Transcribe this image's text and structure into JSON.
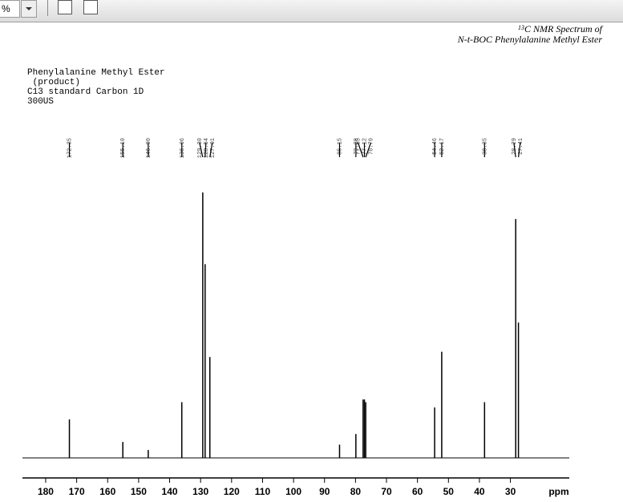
{
  "toolbar": {
    "zoom_suffix": "%"
  },
  "chart_data": {
    "type": "spectrum",
    "title": "C NMR Spectrum of",
    "title_superscript": "13",
    "subtitle": "N-t-BOC Phenylalanine Methyl Ester",
    "notes": [
      "Phenylalanine Methyl Ester",
      " (product)",
      "C13 standard Carbon 1D",
      "300US"
    ],
    "x_label": "ppm",
    "x": [
      172.35,
      155.1,
      146.9,
      136.06,
      129.3,
      128.54,
      127.01,
      85.15,
      79.88,
      77.55,
      77.12,
      76.7,
      54.46,
      52.17,
      38.35,
      28.29,
      27.41
    ],
    "x_labels": [
      "172.35",
      "155.10",
      "146.90",
      "136.06",
      "129.30",
      "128.54",
      "127.01",
      "85.15",
      "79.88",
      "77.55",
      "77.12",
      "76.70",
      "54.46",
      "52.17",
      "38.35",
      "28.29",
      "27.41"
    ],
    "values": [
      14.5,
      6,
      3,
      21,
      100,
      73,
      38,
      5,
      9,
      22,
      22,
      21,
      19,
      40,
      21,
      90,
      51
    ],
    "color": "#000000",
    "xlim": [
      187.5,
      11
    ],
    "ylim": [
      0,
      100
    ],
    "xticks": [
      180,
      170,
      160,
      150,
      140,
      130,
      120,
      110,
      100,
      90,
      80,
      70,
      60,
      50,
      40,
      30
    ]
  }
}
